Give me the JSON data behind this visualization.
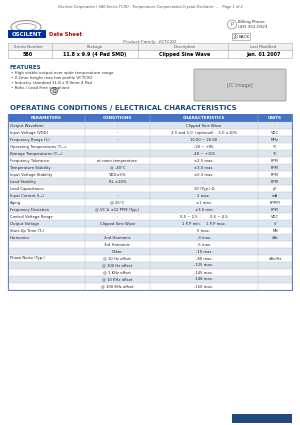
{
  "title_text": "Oscilent Corporation | 580 Series TCXO - Temperature Compensated Crystal Oscillator ...    Page 1 of 2",
  "company": "OSCILENT",
  "tagline": "Data Sheet",
  "series_number": "580",
  "package": "11.8 x 9.9 (4 Pad SMD)",
  "description": "Clipped Sine Wave",
  "last_modified": "Jan. 01 2007",
  "product_family": "Product Family: VCTCXO",
  "billing_phone": "Billing Phone",
  "phone_num": "(49) 352-0323",
  "back_label": "BACK",
  "features_title": "FEATURES",
  "features": [
    "High stable output over wide temperature range",
    "2.2mm height max low profile VCTCXO",
    "Industry standard 11.8 x 9.9mm 4 Pad",
    "Rohs / Lead Free compliant"
  ],
  "table_title": "OPERATING CONDITIONS / ELECTRICAL CHARACTERISTICS",
  "col_headers": [
    "PARAMETERS",
    "CONDITIONS",
    "CHARACTERISTICS",
    "UNITS"
  ],
  "rows": [
    [
      "Output Waveform",
      "-",
      "Clipped Sine Wave",
      "-"
    ],
    [
      "Input Voltage (VDD)",
      "-",
      "3.0 and 5.0  (optional)    5.0 ±10%",
      "VDC"
    ],
    [
      "Frequency Range (f₀)",
      "-",
      "10.00 ~ 26.00",
      "MHz"
    ],
    [
      "Operating Temperatures (Tₘₐ)",
      "",
      "-20 ~ +85",
      "°C"
    ],
    [
      "Storage Temperatures (Tₛₜₒ)",
      "",
      "-40 ~ +105",
      "°C"
    ],
    [
      "Frequency Tolerance",
      "at room temperature",
      "±2.5 max.",
      "PPM"
    ],
    [
      "Temperature Stability",
      "@ -40°C",
      "±3.0 max.",
      "PPM"
    ],
    [
      "Input Voltage Stability",
      "VDD±5%",
      "±0.3 max.",
      "PPM"
    ],
    [
      "Load Stability",
      "RL ±10%",
      "...",
      "PPM"
    ],
    [
      "Load Capacitance",
      "",
      "10 (Typ.) Ω",
      "pF"
    ],
    [
      "Input Current (Iₐₑ)",
      "-",
      "2 max.",
      "mA"
    ],
    [
      "Aging",
      "@ 25°C",
      "±1 max.",
      "PPM/Y"
    ],
    [
      "Frequency Deviation",
      "@ VC & ±12 PPM (Typ.)",
      "±3.0 min.",
      "PPM"
    ],
    [
      "Control Voltage Range",
      "-",
      "0.5 ~ 2.5          0.5 ~ 4.5",
      "VDC"
    ],
    [
      "Output Voltage",
      "Clipped Sine Wave",
      "1 P-P min.    1 P-P max.",
      "V"
    ],
    [
      "Start-Up Time (Tₛ)",
      "-",
      "5 max.",
      "MS"
    ],
    [
      "Harmonics",
      "2nd Harmonic",
      "-3 max.",
      "dBc"
    ],
    [
      "",
      "3rd Harmonic",
      "-5 max.",
      ""
    ],
    [
      "",
      "Other",
      "-10 max.",
      ""
    ],
    [
      "Phase Noise (Typ.)",
      "@ 10 Hz offset",
      "-80 max.",
      "dBc/Hz"
    ],
    [
      "",
      "@ 100 Hz offset",
      "-125 max.",
      ""
    ],
    [
      "",
      "@ 1 KHz offset",
      "-145 max.",
      ""
    ],
    [
      "",
      "@ 10 KHz offset",
      "-148 max.",
      ""
    ],
    [
      "",
      "@ 100 KHz offset",
      "-150 max.",
      ""
    ]
  ],
  "bg_color": "#ffffff",
  "header_bg": "#4472c4",
  "row_alt_bg": "#dce6f1",
  "table_title_color": "#1f497d",
  "header_text_color": "#ffffff",
  "oscilent_blue": "#003399",
  "oscilent_red": "#cc0000",
  "border_color": "#4472c4"
}
